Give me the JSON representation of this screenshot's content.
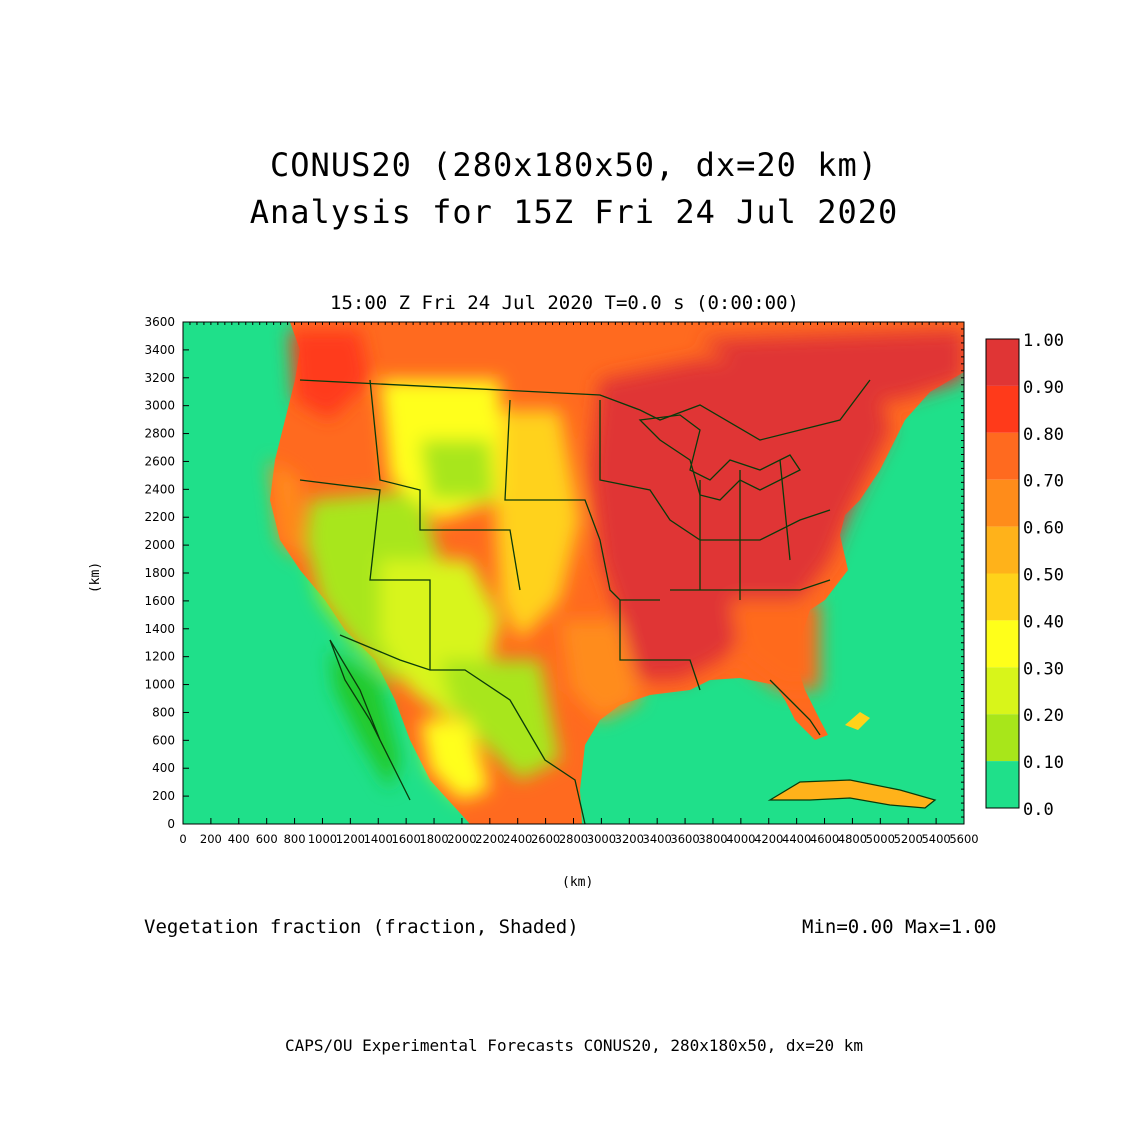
{
  "title": {
    "line1": "CONUS20 (280x180x50, dx=20 km)",
    "line2": "Analysis for 15Z Fri 24 Jul 2020"
  },
  "subtitle": "15:00 Z Fri 24 Jul 2020    T=0.0 s (0:00:00)",
  "axes": {
    "ylabel": "(km)",
    "xlabel": "(km)",
    "xlim": [
      0,
      5600
    ],
    "ylim": [
      0,
      3600
    ],
    "xticks": [
      "0",
      "200",
      "400",
      "600",
      "800",
      "1000",
      "1200",
      "1400",
      "1600",
      "1800",
      "2000",
      "2200",
      "2400",
      "2600",
      "2800",
      "3000",
      "3200",
      "3400",
      "3600",
      "3800",
      "4000",
      "4200",
      "4400",
      "4600",
      "4800",
      "5000",
      "5200",
      "5400",
      "5600"
    ],
    "yticks": [
      "0",
      "200",
      "400",
      "600",
      "800",
      "1000",
      "1200",
      "1400",
      "1600",
      "1800",
      "2000",
      "2200",
      "2400",
      "2600",
      "2800",
      "3000",
      "3200",
      "3400",
      "3600"
    ]
  },
  "variable": "Vegetation fraction (fraction, Shaded)",
  "minmax": "Min=0.00  Max=1.00",
  "footer": "CAPS/OU Experimental Forecasts  CONUS20, 280x180x50, dx=20 km",
  "colorbar": {
    "labels": [
      "1.00",
      "0.90",
      "0.80",
      "0.70",
      "0.60",
      "0.50",
      "0.40",
      "0.30",
      "0.20",
      "0.10",
      "0.0"
    ],
    "colors": [
      "#e03535",
      "#ff3a1a",
      "#ff6a1f",
      "#ff8c1a",
      "#ffb21a",
      "#ffd21a",
      "#ffff1a",
      "#d8f51a",
      "#a8e61a",
      "#22c92a",
      "#1fe08a"
    ]
  },
  "map": {
    "ocean_color": "#1fe08a",
    "boundary_color": "#0a3a0a"
  }
}
